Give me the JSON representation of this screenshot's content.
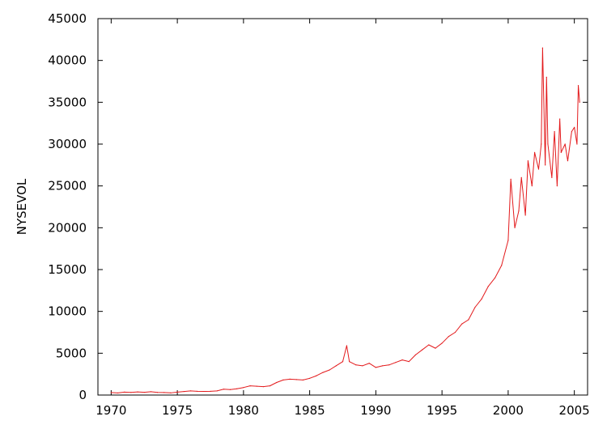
{
  "chart_data": {
    "type": "line",
    "title": "",
    "xlabel": "",
    "ylabel": "NYSEVOL",
    "xlim": [
      1969,
      2006
    ],
    "ylim": [
      0,
      45000
    ],
    "x_ticks": [
      1970,
      1975,
      1980,
      1985,
      1990,
      1995,
      2000,
      2005
    ],
    "y_ticks": [
      0,
      5000,
      10000,
      15000,
      20000,
      25000,
      30000,
      35000,
      40000,
      45000
    ],
    "grid": false,
    "legend": "none",
    "series": [
      {
        "color": "#e31a1c",
        "points": [
          [
            1970.0,
            300
          ],
          [
            1970.5,
            250
          ],
          [
            1971.0,
            350
          ],
          [
            1971.5,
            320
          ],
          [
            1972.0,
            380
          ],
          [
            1972.5,
            330
          ],
          [
            1973.0,
            400
          ],
          [
            1973.5,
            320
          ],
          [
            1974.0,
            300
          ],
          [
            1974.5,
            260
          ],
          [
            1975.0,
            350
          ],
          [
            1975.5,
            420
          ],
          [
            1976.0,
            500
          ],
          [
            1976.5,
            450
          ],
          [
            1977.0,
            430
          ],
          [
            1977.5,
            450
          ],
          [
            1978.0,
            500
          ],
          [
            1978.5,
            700
          ],
          [
            1979.0,
            650
          ],
          [
            1979.5,
            750
          ],
          [
            1980.0,
            900
          ],
          [
            1980.5,
            1100
          ],
          [
            1981.0,
            1050
          ],
          [
            1981.5,
            1000
          ],
          [
            1982.0,
            1100
          ],
          [
            1982.5,
            1500
          ],
          [
            1983.0,
            1800
          ],
          [
            1983.5,
            1900
          ],
          [
            1984.0,
            1850
          ],
          [
            1984.5,
            1800
          ],
          [
            1985.0,
            2000
          ],
          [
            1985.5,
            2300
          ],
          [
            1986.0,
            2700
          ],
          [
            1986.5,
            3000
          ],
          [
            1987.0,
            3500
          ],
          [
            1987.5,
            4000
          ],
          [
            1987.8,
            5900
          ],
          [
            1988.0,
            4000
          ],
          [
            1988.5,
            3600
          ],
          [
            1989.0,
            3500
          ],
          [
            1989.5,
            3800
          ],
          [
            1990.0,
            3300
          ],
          [
            1990.5,
            3500
          ],
          [
            1991.0,
            3600
          ],
          [
            1991.5,
            3900
          ],
          [
            1992.0,
            4200
          ],
          [
            1992.5,
            4000
          ],
          [
            1993.0,
            4800
          ],
          [
            1993.5,
            5400
          ],
          [
            1994.0,
            6000
          ],
          [
            1994.5,
            5600
          ],
          [
            1995.0,
            6200
          ],
          [
            1995.5,
            7000
          ],
          [
            1996.0,
            7500
          ],
          [
            1996.5,
            8500
          ],
          [
            1997.0,
            9000
          ],
          [
            1997.5,
            10500
          ],
          [
            1998.0,
            11500
          ],
          [
            1998.5,
            13000
          ],
          [
            1999.0,
            14000
          ],
          [
            1999.5,
            15500
          ],
          [
            2000.0,
            18500
          ],
          [
            2000.2,
            25800
          ],
          [
            2000.5,
            20000
          ],
          [
            2000.8,
            22000
          ],
          [
            2001.0,
            26000
          ],
          [
            2001.3,
            21500
          ],
          [
            2001.5,
            28000
          ],
          [
            2001.8,
            25000
          ],
          [
            2002.0,
            29000
          ],
          [
            2002.3,
            27000
          ],
          [
            2002.5,
            30000
          ],
          [
            2002.6,
            41500
          ],
          [
            2002.8,
            27500
          ],
          [
            2002.9,
            38000
          ],
          [
            2003.0,
            30000
          ],
          [
            2003.3,
            26000
          ],
          [
            2003.5,
            31500
          ],
          [
            2003.7,
            25000
          ],
          [
            2003.9,
            33000
          ],
          [
            2004.0,
            29000
          ],
          [
            2004.3,
            30000
          ],
          [
            2004.5,
            28000
          ],
          [
            2004.8,
            31500
          ],
          [
            2005.0,
            32000
          ],
          [
            2005.2,
            30000
          ],
          [
            2005.3,
            37000
          ],
          [
            2005.4,
            35000
          ]
        ]
      }
    ]
  }
}
